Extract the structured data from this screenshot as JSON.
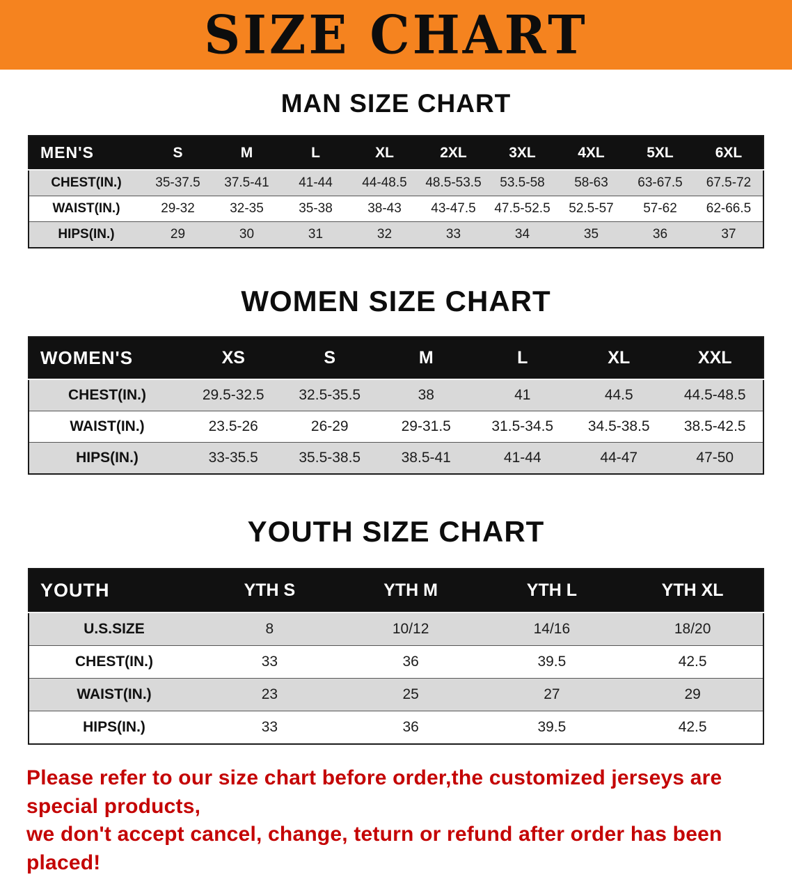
{
  "banner": {
    "title": "SIZE CHART",
    "bg_color": "#f5831f"
  },
  "chart_data": [
    {
      "type": "table",
      "title": "MAN SIZE CHART",
      "columns": [
        "MEN'S",
        "S",
        "M",
        "L",
        "XL",
        "2XL",
        "3XL",
        "4XL",
        "5XL",
        "6XL"
      ],
      "rows": [
        [
          "CHEST(IN.)",
          "35-37.5",
          "37.5-41",
          "41-44",
          "44-48.5",
          "48.5-53.5",
          "53.5-58",
          "58-63",
          "63-67.5",
          "67.5-72"
        ],
        [
          "WAIST(IN.)",
          "29-32",
          "32-35",
          "35-38",
          "38-43",
          "43-47.5",
          "47.5-52.5",
          "52.5-57",
          "57-62",
          "62-66.5"
        ],
        [
          "HIPS(IN.)",
          "29",
          "30",
          "31",
          "32",
          "33",
          "34",
          "35",
          "36",
          "37"
        ]
      ]
    },
    {
      "type": "table",
      "title": "WOMEN SIZE CHART",
      "columns": [
        "WOMEN'S",
        "XS",
        "S",
        "M",
        "L",
        "XL",
        "XXL"
      ],
      "rows": [
        [
          "CHEST(IN.)",
          "29.5-32.5",
          "32.5-35.5",
          "38",
          "41",
          "44.5",
          "44.5-48.5"
        ],
        [
          "WAIST(IN.)",
          "23.5-26",
          "26-29",
          "29-31.5",
          "31.5-34.5",
          "34.5-38.5",
          "38.5-42.5"
        ],
        [
          "HIPS(IN.)",
          "33-35.5",
          "35.5-38.5",
          "38.5-41",
          "41-44",
          "44-47",
          "47-50"
        ]
      ]
    },
    {
      "type": "table",
      "title": "YOUTH SIZE CHART",
      "columns": [
        "YOUTH",
        "YTH S",
        "YTH M",
        "YTH L",
        "YTH XL"
      ],
      "rows": [
        [
          "U.S.SIZE",
          "8",
          "10/12",
          "14/16",
          "18/20"
        ],
        [
          "CHEST(IN.)",
          "33",
          "36",
          "39.5",
          "42.5"
        ],
        [
          "WAIST(IN.)",
          "23",
          "25",
          "27",
          "29"
        ],
        [
          "HIPS(IN.)",
          "33",
          "36",
          "39.5",
          "42.5"
        ]
      ]
    }
  ],
  "footer": {
    "line1": "Please refer to our size chart before order,the customized jerseys are special products,",
    "line2": "we don't accept cancel, change, teturn or refund after order has been placed!"
  }
}
